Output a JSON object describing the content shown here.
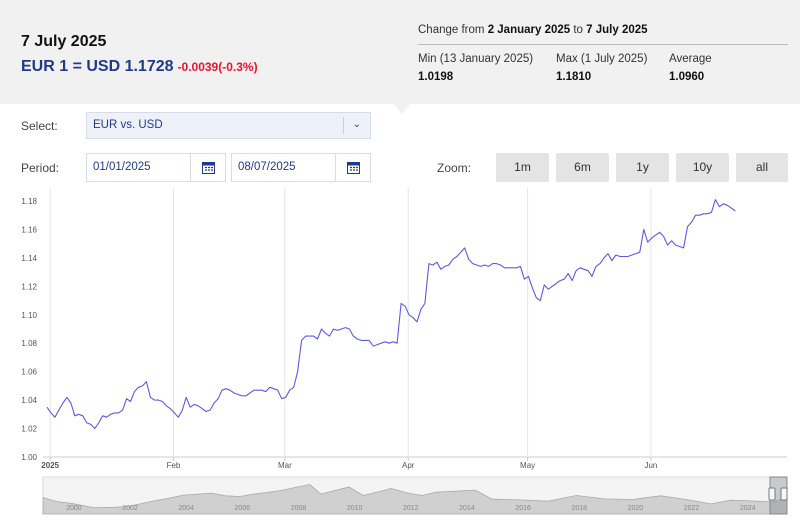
{
  "summary": {
    "date": "7 July 2025",
    "rate": "EUR 1 = USD 1.1728",
    "change": "-0.0039(-0.3%)",
    "range_prefix": "Change from ",
    "range_start": "2 January 2025",
    "range_mid": " to ",
    "range_end": "7 July 2025",
    "min_label": "Min (13 January 2025)",
    "min_value": "1.0198",
    "max_label": "Max (1 July 2025)",
    "max_value": "1.1810",
    "avg_label": "Average",
    "avg_value": "1.0960"
  },
  "controls": {
    "select_label": "Select:",
    "select_value": "EUR vs. USD",
    "period_label": "Period:",
    "period_from": "01/01/2025",
    "period_to": "08/07/2025",
    "zoom_label": "Zoom:",
    "zoom_buttons": [
      "1m",
      "6m",
      "1y",
      "10y",
      "all"
    ]
  },
  "colors": {
    "line": "#5b5be0",
    "rate_text": "#1f3a8a",
    "change_text": "#e8132d",
    "header_bg": "#f1f1f1",
    "navigator_fill": "#d0d0d0",
    "navigator_line": "#aaaaaa"
  },
  "chart_data": {
    "type": "line",
    "y_ticks": [
      "1.00",
      "1.02",
      "1.04",
      "1.06",
      "1.08",
      "1.10",
      "1.12",
      "1.14",
      "1.16",
      "1.18"
    ],
    "ylim": [
      1.0,
      1.18
    ],
    "xlim": [
      0,
      187
    ],
    "x_labels": [
      {
        "label": "2025",
        "x": 0
      },
      {
        "label": "Feb",
        "x": 31
      },
      {
        "label": "Mar",
        "x": 59
      },
      {
        "label": "Apr",
        "x": 90
      },
      {
        "label": "May",
        "x": 120
      },
      {
        "label": "Jun",
        "x": 151
      }
    ],
    "series": [
      {
        "points": [
          [
            1,
            1.035
          ],
          [
            2,
            1.031
          ],
          [
            3,
            1.028
          ],
          [
            4,
            1.033
          ],
          [
            5,
            1.038
          ],
          [
            6,
            1.042
          ],
          [
            7,
            1.038
          ],
          [
            8,
            1.029
          ],
          [
            9,
            1.03
          ],
          [
            10,
            1.029
          ],
          [
            11,
            1.024
          ],
          [
            12,
            1.023
          ],
          [
            13,
            1.02
          ],
          [
            14,
            1.024
          ],
          [
            15,
            1.029
          ],
          [
            16,
            1.028
          ],
          [
            17,
            1.03
          ],
          [
            18,
            1.031
          ],
          [
            19,
            1.031
          ],
          [
            20,
            1.033
          ],
          [
            21,
            1.041
          ],
          [
            22,
            1.039
          ],
          [
            23,
            1.046
          ],
          [
            24,
            1.049
          ],
          [
            25,
            1.05
          ],
          [
            26,
            1.053
          ],
          [
            27,
            1.042
          ],
          [
            28,
            1.04
          ],
          [
            29,
            1.04
          ],
          [
            30,
            1.039
          ],
          [
            31,
            1.036
          ],
          [
            32,
            1.034
          ],
          [
            33,
            1.031
          ],
          [
            34,
            1.028
          ],
          [
            35,
            1.033
          ],
          [
            36,
            1.042
          ],
          [
            37,
            1.035
          ],
          [
            38,
            1.037
          ],
          [
            39,
            1.036
          ],
          [
            40,
            1.034
          ],
          [
            41,
            1.032
          ],
          [
            42,
            1.033
          ],
          [
            43,
            1.038
          ],
          [
            44,
            1.041
          ],
          [
            45,
            1.047
          ],
          [
            46,
            1.048
          ],
          [
            47,
            1.047
          ],
          [
            48,
            1.045
          ],
          [
            49,
            1.044
          ],
          [
            50,
            1.043
          ],
          [
            51,
            1.043
          ],
          [
            52,
            1.045
          ],
          [
            53,
            1.047
          ],
          [
            54,
            1.047
          ],
          [
            55,
            1.047
          ],
          [
            56,
            1.046
          ],
          [
            57,
            1.049
          ],
          [
            58,
            1.048
          ],
          [
            59,
            1.047
          ],
          [
            60,
            1.041
          ],
          [
            61,
            1.042
          ],
          [
            62,
            1.047
          ],
          [
            63,
            1.049
          ],
          [
            64,
            1.06
          ],
          [
            65,
            1.082
          ],
          [
            66,
            1.085
          ],
          [
            67,
            1.085
          ],
          [
            68,
            1.085
          ],
          [
            69,
            1.083
          ],
          [
            70,
            1.09
          ],
          [
            71,
            1.087
          ],
          [
            72,
            1.085
          ],
          [
            73,
            1.09
          ],
          [
            74,
            1.089
          ],
          [
            75,
            1.09
          ],
          [
            76,
            1.091
          ],
          [
            77,
            1.09
          ],
          [
            78,
            1.085
          ],
          [
            79,
            1.083
          ],
          [
            80,
            1.082
          ],
          [
            81,
            1.082
          ],
          [
            82,
            1.082
          ],
          [
            83,
            1.078
          ],
          [
            84,
            1.079
          ],
          [
            85,
            1.08
          ],
          [
            86,
            1.081
          ],
          [
            87,
            1.08
          ],
          [
            88,
            1.081
          ],
          [
            89,
            1.08
          ],
          [
            90,
            1.108
          ],
          [
            91,
            1.106
          ],
          [
            92,
            1.1
          ],
          [
            93,
            1.098
          ],
          [
            94,
            1.095
          ],
          [
            95,
            1.104
          ],
          [
            96,
            1.108
          ],
          [
            97,
            1.136
          ],
          [
            98,
            1.135
          ],
          [
            99,
            1.137
          ],
          [
            100,
            1.132
          ],
          [
            101,
            1.134
          ],
          [
            102,
            1.135
          ],
          [
            103,
            1.139
          ],
          [
            104,
            1.141
          ],
          [
            105,
            1.144
          ],
          [
            106,
            1.147
          ],
          [
            107,
            1.139
          ],
          [
            108,
            1.136
          ],
          [
            109,
            1.135
          ],
          [
            110,
            1.134
          ],
          [
            111,
            1.135
          ],
          [
            112,
            1.134
          ],
          [
            113,
            1.136
          ],
          [
            114,
            1.136
          ],
          [
            115,
            1.135
          ],
          [
            116,
            1.133
          ],
          [
            117,
            1.133
          ],
          [
            118,
            1.133
          ],
          [
            119,
            1.133
          ],
          [
            120,
            1.134
          ],
          [
            121,
            1.125
          ],
          [
            122,
            1.127
          ],
          [
            123,
            1.119
          ],
          [
            124,
            1.112
          ],
          [
            125,
            1.11
          ],
          [
            126,
            1.121
          ],
          [
            127,
            1.118
          ],
          [
            128,
            1.12
          ],
          [
            129,
            1.122
          ],
          [
            130,
            1.124
          ],
          [
            131,
            1.125
          ],
          [
            132,
            1.129
          ],
          [
            133,
            1.124
          ],
          [
            134,
            1.131
          ],
          [
            135,
            1.133
          ],
          [
            136,
            1.132
          ],
          [
            137,
            1.131
          ],
          [
            138,
            1.127
          ],
          [
            139,
            1.134
          ],
          [
            140,
            1.136
          ],
          [
            141,
            1.14
          ],
          [
            142,
            1.143
          ],
          [
            143,
            1.138
          ],
          [
            144,
            1.142
          ],
          [
            145,
            1.141
          ],
          [
            146,
            1.141
          ],
          [
            147,
            1.141
          ],
          [
            148,
            1.142
          ],
          [
            149,
            1.143
          ],
          [
            150,
            1.144
          ],
          [
            151,
            1.16
          ],
          [
            152,
            1.151
          ],
          [
            153,
            1.154
          ],
          [
            154,
            1.156
          ],
          [
            155,
            1.158
          ],
          [
            156,
            1.155
          ],
          [
            157,
            1.149
          ],
          [
            158,
            1.152
          ],
          [
            159,
            1.149
          ],
          [
            160,
            1.148
          ],
          [
            161,
            1.147
          ],
          [
            162,
            1.162
          ],
          [
            163,
            1.165
          ],
          [
            164,
            1.17
          ],
          [
            165,
            1.17
          ],
          [
            166,
            1.171
          ],
          [
            167,
            1.171
          ],
          [
            168,
            1.172
          ],
          [
            169,
            1.181
          ],
          [
            170,
            1.176
          ],
          [
            171,
            1.178
          ],
          [
            172,
            1.177
          ],
          [
            173,
            1.175
          ],
          [
            174,
            1.173
          ]
        ]
      }
    ],
    "navigator": {
      "type": "area",
      "x_labels": [
        "2000",
        "2002",
        "2004",
        "2006",
        "2008",
        "2010",
        "2012",
        "2014",
        "2016",
        "2018",
        "2020",
        "2022",
        "2024"
      ],
      "xlim": [
        1999,
        2025.5
      ],
      "points": [
        [
          1999,
          1.17
        ],
        [
          1999.5,
          1.05
        ],
        [
          2000,
          1.0
        ],
        [
          2000.8,
          0.87
        ],
        [
          2001.5,
          0.88
        ],
        [
          2002,
          0.9
        ],
        [
          2002.5,
          0.99
        ],
        [
          2003,
          1.08
        ],
        [
          2003.5,
          1.15
        ],
        [
          2004,
          1.24
        ],
        [
          2005,
          1.3
        ],
        [
          2005.5,
          1.22
        ],
        [
          2006,
          1.2
        ],
        [
          2006.5,
          1.27
        ],
        [
          2007,
          1.32
        ],
        [
          2007.5,
          1.38
        ],
        [
          2008,
          1.47
        ],
        [
          2008.5,
          1.56
        ],
        [
          2008.9,
          1.27
        ],
        [
          2009.5,
          1.4
        ],
        [
          2009.9,
          1.48
        ],
        [
          2010.4,
          1.23
        ],
        [
          2011,
          1.35
        ],
        [
          2011.4,
          1.44
        ],
        [
          2012,
          1.3
        ],
        [
          2012.5,
          1.23
        ],
        [
          2013,
          1.33
        ],
        [
          2014,
          1.37
        ],
        [
          2014.4,
          1.39
        ],
        [
          2015,
          1.12
        ],
        [
          2016,
          1.1
        ],
        [
          2017,
          1.06
        ],
        [
          2018,
          1.23
        ],
        [
          2019,
          1.13
        ],
        [
          2020,
          1.11
        ],
        [
          2021,
          1.22
        ],
        [
          2022,
          1.1
        ],
        [
          2022.8,
          0.98
        ],
        [
          2023.5,
          1.09
        ],
        [
          2024,
          1.08
        ],
        [
          2025,
          1.04
        ],
        [
          2025.5,
          1.17
        ]
      ]
    }
  }
}
